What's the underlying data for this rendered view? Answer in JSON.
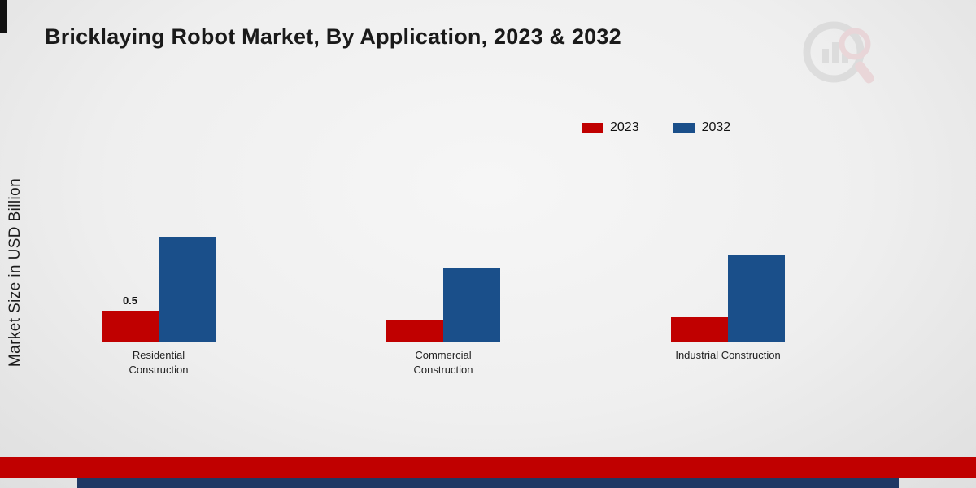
{
  "chart_data": {
    "type": "bar",
    "title": "Bricklaying Robot Market, By Application, 2023 & 2032",
    "ylabel": "Market Size in USD Billion",
    "xlabel": "",
    "categories": [
      "Residential Construction",
      "Commercial Construction",
      "Industrial Construction"
    ],
    "series": [
      {
        "name": "2023",
        "color": "#c00000",
        "values": [
          0.5,
          0.35,
          0.4
        ]
      },
      {
        "name": "2032",
        "color": "#1a4f8a",
        "values": [
          1.7,
          1.2,
          1.4
        ]
      }
    ],
    "bar_labels": [
      {
        "series": 0,
        "category": 0,
        "text": "0.5"
      }
    ],
    "ylim": [
      0,
      2.5
    ],
    "grid": false,
    "baseline_style": "dashed",
    "legend_position": "top-right"
  },
  "footer": {
    "red_band_color": "#c00000",
    "navy_band_color": "#1f3864"
  },
  "logo": {
    "name": "market-research-future-watermark"
  }
}
